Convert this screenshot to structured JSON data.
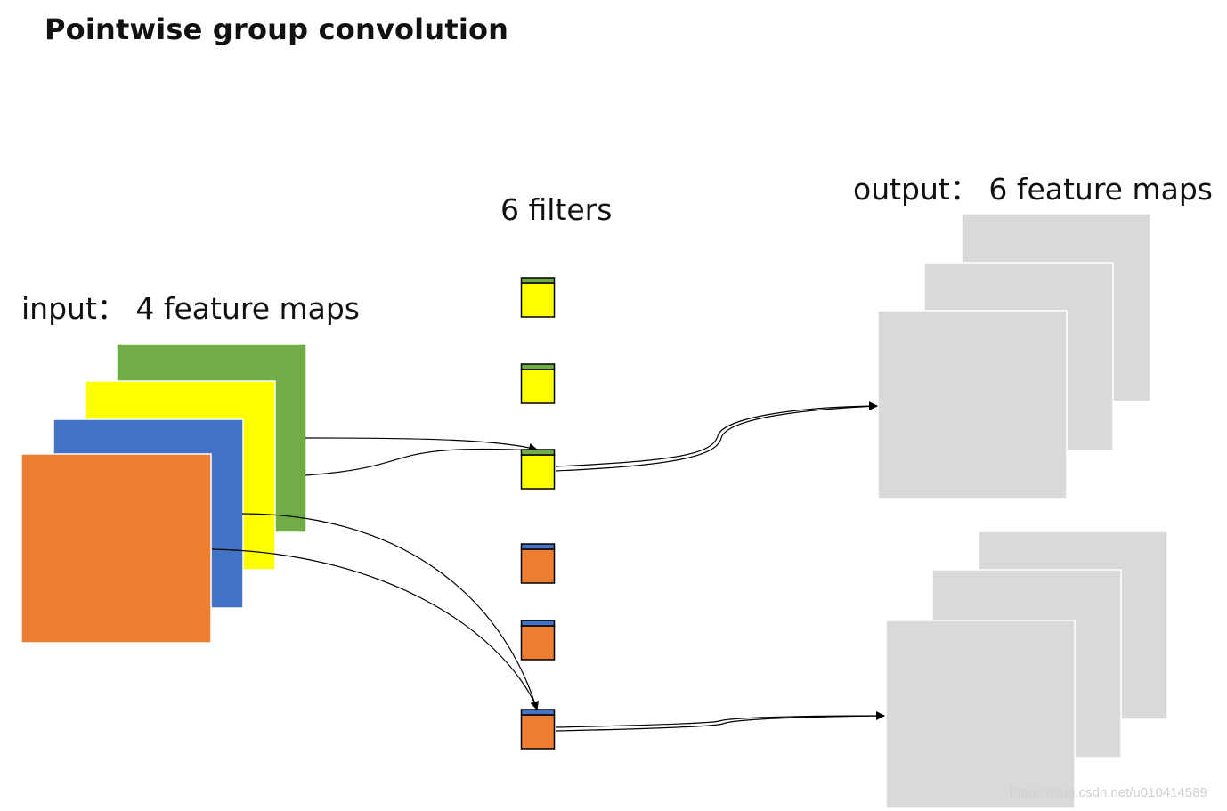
{
  "title": "Pointwise group convolution",
  "filters_label": "6 filters",
  "input_label": "input：  4 feature maps",
  "output_label": "output：  6 feature maps",
  "watermark": "https://blog.csdn.net/u010414589",
  "colors": {
    "green": "#70AD47",
    "yellow": "#FFFF00",
    "blue": "#4472C4",
    "orange": "#ED7D31",
    "output_gray": "#D9D9D9",
    "arrow": "#000000"
  },
  "input_maps": [
    {
      "name": "input-map-green",
      "color": "green"
    },
    {
      "name": "input-map-yellow",
      "color": "yellow"
    },
    {
      "name": "input-map-blue",
      "color": "blue"
    },
    {
      "name": "input-map-orange",
      "color": "orange"
    }
  ],
  "filters": [
    {
      "name": "filter-1",
      "top_color": "green",
      "body_color": "yellow"
    },
    {
      "name": "filter-2",
      "top_color": "green",
      "body_color": "yellow"
    },
    {
      "name": "filter-3",
      "top_color": "green",
      "body_color": "yellow"
    },
    {
      "name": "filter-4",
      "top_color": "blue",
      "body_color": "orange"
    },
    {
      "name": "filter-5",
      "top_color": "blue",
      "body_color": "orange"
    },
    {
      "name": "filter-6",
      "top_color": "blue",
      "body_color": "orange"
    }
  ],
  "output_groups": [
    {
      "name": "output-group-top",
      "maps": 3
    },
    {
      "name": "output-group-bottom",
      "maps": 3
    }
  ]
}
